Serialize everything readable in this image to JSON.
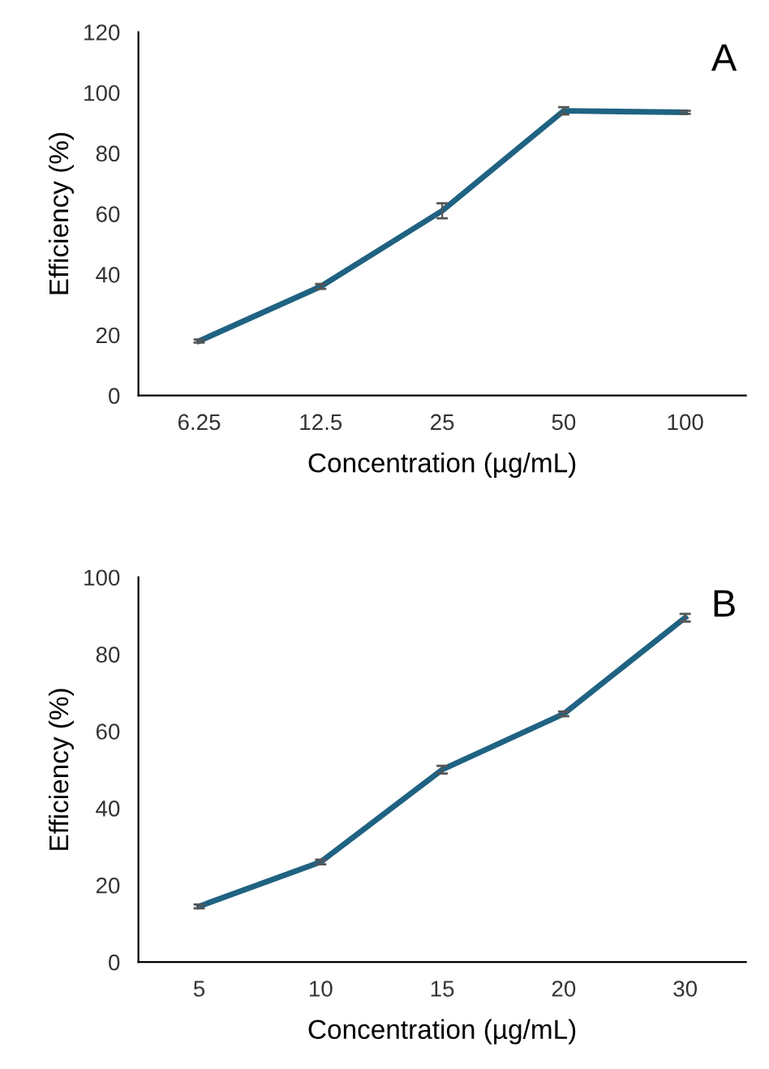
{
  "chart_data": [
    {
      "type": "line",
      "xlabel": "Concentration (µg/mL)",
      "ylabel": "Efficiency (%)",
      "annotations": [
        "A"
      ],
      "categories": [
        "6.25",
        "12.5",
        "25",
        "50",
        "100"
      ],
      "series": [
        {
          "color": "#1f6282",
          "values": [
            18,
            36,
            61,
            94,
            93.5
          ],
          "errors": [
            0.5,
            0.8,
            2.5,
            1.2,
            0.5
          ]
        }
      ],
      "ylim": [
        0,
        120
      ],
      "yticks": [
        0,
        20,
        40,
        60,
        80,
        100,
        120
      ],
      "grid": false,
      "legend": false,
      "marker": "none",
      "line_style": "solid"
    },
    {
      "type": "line",
      "xlabel": "Concentration (µg/mL)",
      "ylabel": "Efficiency (%)",
      "annotations": [
        "B"
      ],
      "categories": [
        "5",
        "10",
        "15",
        "20",
        "30"
      ],
      "series": [
        {
          "color": "#1f6282",
          "values": [
            14.5,
            26,
            50,
            64.5,
            89.5
          ],
          "errors": [
            0.5,
            0.6,
            1,
            0.6,
            1
          ]
        }
      ],
      "ylim": [
        0,
        100
      ],
      "yticks": [
        0,
        20,
        40,
        60,
        80,
        100
      ],
      "grid": false,
      "legend": false,
      "marker": "none",
      "line_style": "solid"
    }
  ]
}
